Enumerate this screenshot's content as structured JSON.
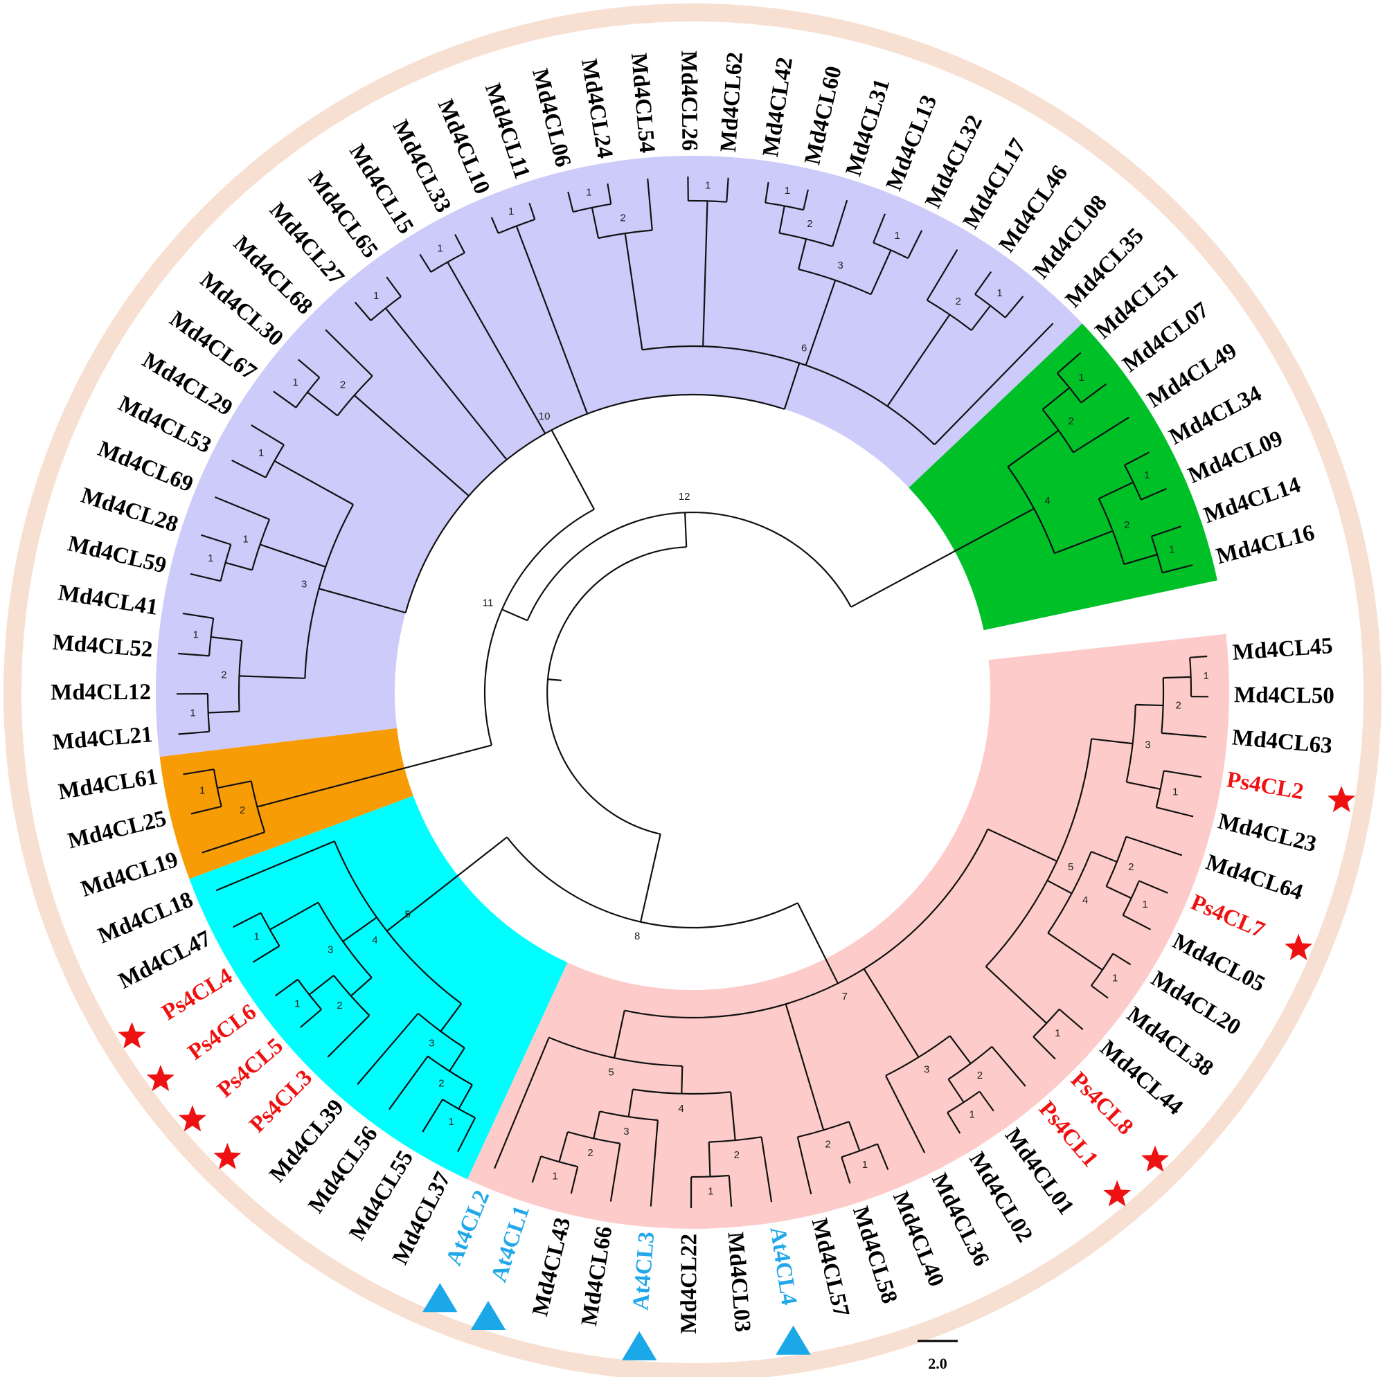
{
  "colors": {
    "ring": "#f7e0d2",
    "purple_clade": "#cccbfa",
    "green_clade": "#00c028",
    "pink_clade": "#fccbca",
    "cyan_clade": "#00fefe",
    "orange_clade": "#f89c06",
    "default_label": "#000000",
    "ps_label": "#ee1111",
    "at_label": "#22a8e8",
    "star": "#ee1111",
    "triangle": "#1aa8e8"
  },
  "marker_icons": {
    "Ps": "star-icon",
    "At": "triangle-icon"
  },
  "leaves": [
    "Md4CL45",
    "Md4CL50",
    "Md4CL63",
    "Ps4CL2",
    "Md4CL23",
    "Md4CL64",
    "Ps4CL7",
    "Md4CL05",
    "Md4CL20",
    "Md4CL38",
    "Md4CL44",
    "Ps4CL8",
    "Ps4CL1",
    "Md4CL01",
    "Md4CL02",
    "Md4CL36",
    "Md4CL40",
    "Md4CL58",
    "Md4CL57",
    "At4CL4",
    "Md4CL03",
    "Md4CL22",
    "At4CL3",
    "Md4CL66",
    "Md4CL43",
    "At4CL1",
    "At4CL2",
    "Md4CL37",
    "Md4CL55",
    "Md4CL56",
    "Md4CL39",
    "Ps4CL3",
    "Ps4CL5",
    "Ps4CL6",
    "Ps4CL4",
    "Md4CL47",
    "Md4CL18",
    "Md4CL19",
    "Md4CL25",
    "Md4CL61",
    "Md4CL21",
    "Md4CL12",
    "Md4CL52",
    "Md4CL41",
    "Md4CL59",
    "Md4CL28",
    "Md4CL69",
    "Md4CL53",
    "Md4CL29",
    "Md4CL67",
    "Md4CL30",
    "Md4CL68",
    "Md4CL27",
    "Md4CL65",
    "Md4CL15",
    "Md4CL33",
    "Md4CL10",
    "Md4CL11",
    "Md4CL06",
    "Md4CL24",
    "Md4CL54",
    "Md4CL26",
    "Md4CL62",
    "Md4CL42",
    "Md4CL60",
    "Md4CL31",
    "Md4CL13",
    "Md4CL32",
    "Md4CL17",
    "Md4CL46",
    "Md4CL08",
    "Md4CL35",
    "Md4CL51",
    "Md4CL07",
    "Md4CL49",
    "Md4CL34",
    "Md4CL09",
    "Md4CL14",
    "Md4CL16"
  ],
  "clades": [
    {
      "name": "pink",
      "color": "#fccbca",
      "first": 0,
      "last": 26
    },
    {
      "name": "cyan",
      "color": "#00fefe",
      "first": 27,
      "last": 36
    },
    {
      "name": "orange",
      "color": "#f89c06",
      "first": 37,
      "last": 39
    },
    {
      "name": "purple",
      "color": "#cccbfa",
      "first": 40,
      "last": 71
    },
    {
      "name": "green",
      "color": "#00c028",
      "first": 72,
      "last": 78
    }
  ],
  "scale_bar": {
    "label": "2.0"
  }
}
